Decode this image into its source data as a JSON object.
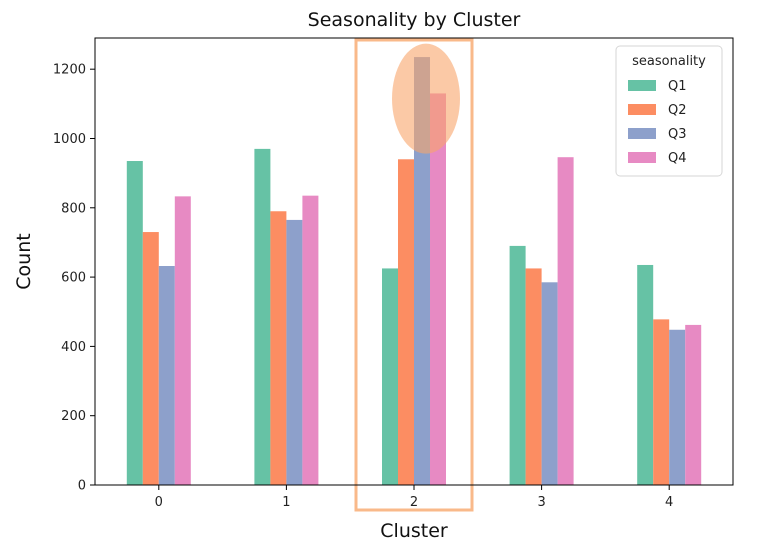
{
  "chart_data": {
    "type": "bar",
    "title": "Seasonality by Cluster",
    "xlabel": "Cluster",
    "ylabel": "Count",
    "categories": [
      "0",
      "1",
      "2",
      "3",
      "4"
    ],
    "ylim": [
      0,
      1290
    ],
    "yticks": [
      0,
      200,
      400,
      600,
      800,
      1000,
      1200
    ],
    "grid": false,
    "legend": {
      "title": "seasonality",
      "placement": "top-right"
    },
    "series": [
      {
        "name": "Q1",
        "color": "#66c2a5",
        "values": [
          935,
          970,
          625,
          690,
          635
        ]
      },
      {
        "name": "Q2",
        "color": "#fc8d62",
        "values": [
          730,
          790,
          940,
          625,
          478
        ]
      },
      {
        "name": "Q3",
        "color": "#8da0cb",
        "values": [
          632,
          765,
          1235,
          585,
          448
        ]
      },
      {
        "name": "Q4",
        "color": "#e78ac3",
        "values": [
          833,
          835,
          1130,
          946,
          462
        ]
      }
    ],
    "annotations": {
      "highlight_category": "2",
      "highlight_box_color": "#f9b98a",
      "highlight_ellipse_color": "#f9a56a"
    }
  }
}
